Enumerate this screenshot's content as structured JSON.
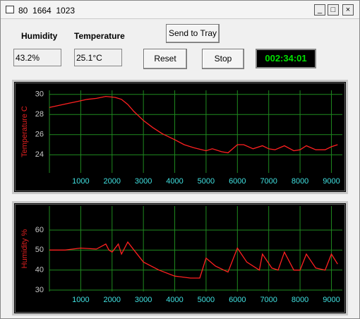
{
  "window": {
    "title": "80  1664  1023"
  },
  "labels": {
    "humidity": "Humidity",
    "temperature": "Temperature"
  },
  "fields": {
    "humidity": "43.2%",
    "temperature": "25.1°C"
  },
  "buttons": {
    "send_to_tray": "Send to Tray",
    "reset": "Reset",
    "stop": "Stop"
  },
  "timer": "002:34:01",
  "chart_data": [
    {
      "type": "line",
      "y_label": "Temperature C",
      "color": "#ff2020",
      "grid": true,
      "x": [
        0,
        300,
        600,
        900,
        1200,
        1500,
        1800,
        2100,
        2300,
        2500,
        2700,
        3000,
        3300,
        3600,
        4000,
        4300,
        4600,
        5000,
        5200,
        5500,
        5700,
        6000,
        6200,
        6500,
        6800,
        7000,
        7200,
        7500,
        7800,
        8000,
        8200,
        8500,
        8800,
        9000,
        9200
      ],
      "values": [
        28.7,
        28.9,
        29.1,
        29.3,
        29.5,
        29.6,
        29.8,
        29.7,
        29.5,
        29.0,
        28.3,
        27.4,
        26.7,
        26.1,
        25.5,
        25.0,
        24.7,
        24.4,
        24.6,
        24.3,
        24.2,
        25.0,
        25.0,
        24.6,
        24.9,
        24.6,
        24.5,
        24.9,
        24.4,
        24.5,
        24.9,
        24.5,
        24.5,
        24.8,
        25.0
      ],
      "xlim": [
        0,
        9350
      ],
      "ylim": [
        22.2,
        30.4
      ],
      "xticks": [
        1000,
        2000,
        3000,
        4000,
        5000,
        6000,
        7000,
        8000,
        9000
      ],
      "yticks": [
        24,
        26,
        28,
        30
      ]
    },
    {
      "type": "line",
      "y_label": "Humidity %",
      "color": "#ff2020",
      "grid": true,
      "x": [
        0,
        500,
        1000,
        1500,
        1800,
        1900,
        2000,
        2200,
        2300,
        2500,
        2700,
        3000,
        3500,
        4000,
        4500,
        4800,
        5000,
        5300,
        5700,
        6000,
        6300,
        6700,
        6800,
        7100,
        7300,
        7500,
        7800,
        8000,
        8200,
        8500,
        8800,
        9000,
        9200
      ],
      "values": [
        50,
        50,
        51,
        50.5,
        53,
        50,
        49,
        53,
        48,
        54,
        50,
        44,
        40,
        37,
        36,
        36,
        46,
        42,
        39,
        51,
        44,
        40,
        48,
        41,
        40,
        49,
        40,
        40,
        48,
        41,
        40,
        48,
        43
      ],
      "xlim": [
        0,
        9350
      ],
      "ylim": [
        29.3,
        72
      ],
      "xticks": [
        1000,
        2000,
        3000,
        4000,
        5000,
        6000,
        7000,
        8000,
        9000
      ],
      "yticks": [
        30,
        40,
        50,
        60
      ]
    }
  ]
}
